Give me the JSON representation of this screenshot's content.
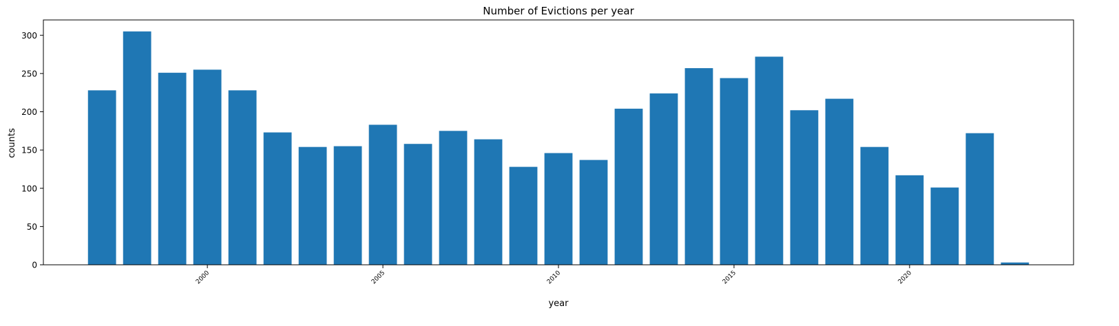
{
  "chart_data": {
    "type": "bar",
    "title": "Number of Evictions per year",
    "xlabel": "year",
    "ylabel": "counts",
    "x": [
      1997,
      1998,
      1999,
      2000,
      2001,
      2002,
      2003,
      2004,
      2005,
      2006,
      2007,
      2008,
      2009,
      2010,
      2011,
      2012,
      2013,
      2014,
      2015,
      2016,
      2017,
      2018,
      2019,
      2020,
      2021,
      2022,
      2023
    ],
    "values": [
      228,
      305,
      251,
      255,
      228,
      173,
      154,
      155,
      183,
      158,
      175,
      164,
      128,
      146,
      137,
      204,
      224,
      257,
      244,
      272,
      202,
      217,
      154,
      117,
      101,
      172,
      3
    ],
    "xticks": [
      "2000",
      "2005",
      "2010",
      "2015",
      "2020"
    ],
    "yticks": [
      "0",
      "50",
      "100",
      "150",
      "200",
      "250",
      "300"
    ],
    "ylim": [
      0,
      320
    ],
    "color": "#1f77b4",
    "grid": false,
    "legend": "none"
  }
}
